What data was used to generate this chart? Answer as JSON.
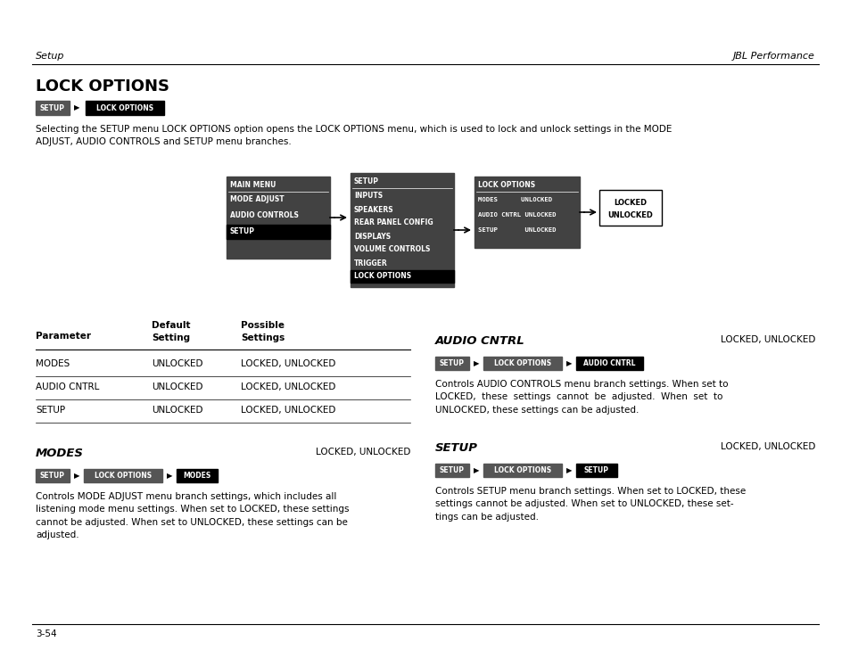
{
  "bg_color": "#ffffff",
  "page_width": 9.54,
  "page_height": 7.38,
  "header_left": "Setup",
  "header_right": "JBL Performance",
  "title": "LOCK OPTIONS",
  "intro_text": "Selecting the SETUP menu LOCK OPTIONS option opens the LOCK OPTIONS menu, which is used to lock and unlock settings in the MODE\nADJUST, AUDIO CONTROLS and SETUP menu branches.",
  "footer_text": "3-54"
}
